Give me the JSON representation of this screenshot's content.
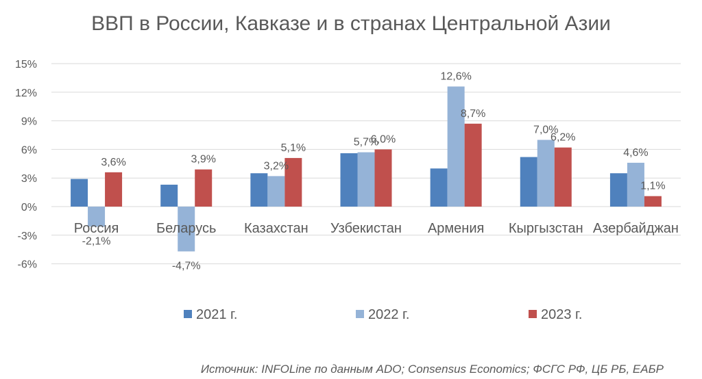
{
  "chart_data": {
    "type": "bar",
    "title": "ВВП в России, Кавказе и в странах Центральной Азии",
    "categories": [
      "Россия",
      "Беларусь",
      "Казахстан",
      "Узбекистан",
      "Армения",
      "Кыргызстан",
      "Азербайджан"
    ],
    "series": [
      {
        "name": "2021 г.",
        "color": "#4f81bd",
        "values": [
          2.9,
          2.3,
          3.5,
          5.6,
          4.0,
          5.2,
          3.5
        ],
        "labels": [
          "",
          "",
          "",
          "",
          "",
          "",
          ""
        ]
      },
      {
        "name": "2022 г.",
        "color": "#95b3d7",
        "values": [
          -2.1,
          -4.7,
          3.2,
          5.7,
          12.6,
          7.0,
          4.6
        ],
        "labels": [
          "-2,1%",
          "-4,7%",
          "3,2%",
          "5,7%",
          "12,6%",
          "7,0%",
          "4,6%"
        ]
      },
      {
        "name": "2023 г.",
        "color": "#c0504d",
        "values": [
          3.6,
          3.9,
          5.1,
          6.0,
          8.7,
          6.2,
          1.1
        ],
        "labels": [
          "3,6%",
          "3,9%",
          "5,1%",
          "6,0%",
          "8,7%",
          "6,2%",
          "1,1%"
        ]
      }
    ],
    "y_ticks": [
      15,
      12,
      9,
      6,
      3,
      0,
      -3,
      -6
    ],
    "y_tick_labels": [
      "15%",
      "12%",
      "9%",
      "6%",
      "3%",
      "0%",
      "-3%",
      "-6%"
    ],
    "ylim": [
      -6,
      15
    ],
    "grid": true,
    "legend_position": "bottom"
  },
  "source": "Источник: INFOLine по данным ADO; Consensus Economics; ФСГС РФ, ЦБ РБ, ЕАБР"
}
